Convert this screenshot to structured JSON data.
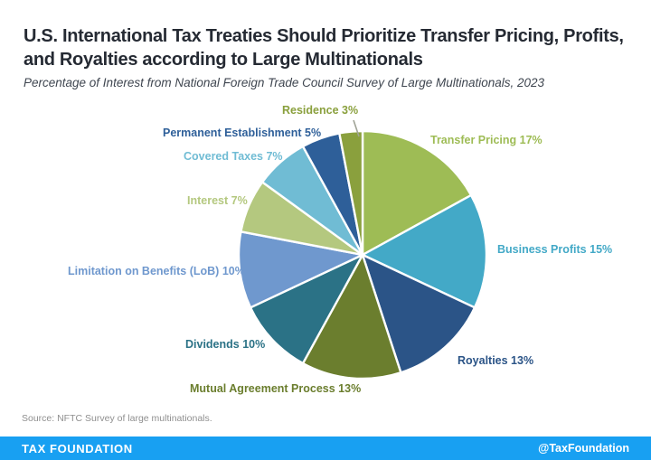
{
  "header": {
    "title": "U.S. International Tax Treaties Should Prioritize Transfer Pricing, Profits, and Royalties according to Large Multinationals",
    "subtitle": "Percentage of Interest from National Foreign Trade Council Survey of Large Multinationals, 2023"
  },
  "chart_data": {
    "type": "pie",
    "title": "U.S. International Tax Treaties Should Prioritize Transfer Pricing, Profits, and Royalties according to Large Multinationals",
    "subtitle": "Percentage of Interest from National Foreign Trade Council Survey of Large Multinationals, 2023",
    "unit": "percent",
    "start_position": "12-o'clock, clockwise",
    "legend_position": "direct-labels",
    "categories": [
      "Transfer Pricing",
      "Business Profits",
      "Royalties",
      "Mutual Agreement Process",
      "Dividends",
      "Limitation on Benefits (LoB)",
      "Interest",
      "Covered Taxes",
      "Permanent Establishment",
      "Residence"
    ],
    "values": [
      17,
      15,
      13,
      13,
      10,
      10,
      7,
      7,
      5,
      3
    ],
    "slices": [
      {
        "name": "Transfer Pricing",
        "value": 17,
        "label": "Transfer Pricing 17%",
        "color": "#9ebc55"
      },
      {
        "name": "Business Profits",
        "value": 15,
        "label": "Business Profits 15%",
        "color": "#43a9c7"
      },
      {
        "name": "Royalties",
        "value": 13,
        "label": "Royalties 13%",
        "color": "#2b5487"
      },
      {
        "name": "Mutual Agreement Process",
        "value": 13,
        "label": "Mutual Agreement Process 13%",
        "color": "#6b7e2e"
      },
      {
        "name": "Dividends",
        "value": 10,
        "label": "Dividends 10%",
        "color": "#2b7286"
      },
      {
        "name": "Limitation on Benefits (LoB)",
        "value": 10,
        "label": "Limitation on Benefits (LoB) 10%",
        "color": "#6f98ce"
      },
      {
        "name": "Interest",
        "value": 7,
        "label": "Interest 7%",
        "color": "#b4c87f"
      },
      {
        "name": "Covered Taxes",
        "value": 7,
        "label": "Covered Taxes 7%",
        "color": "#70bcd4"
      },
      {
        "name": "Permanent Establishment",
        "value": 5,
        "label": "Permanent Establishment 5%",
        "color": "#2e5f99"
      },
      {
        "name": "Residence",
        "value": 3,
        "label": "Residence 3%",
        "color": "#8aa03d"
      }
    ],
    "slice_border_color": "#ffffff"
  },
  "footer": {
    "source": "Source: NFTC Survey of large multinationals.",
    "brand": "TAX FOUNDATION",
    "social_handle": "@TaxFoundation",
    "bar_color": "#18a0f2"
  }
}
